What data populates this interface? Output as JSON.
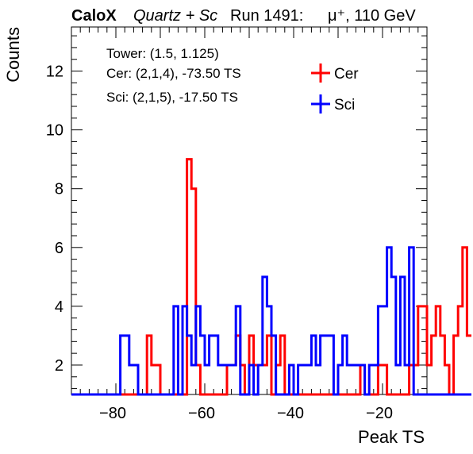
{
  "header": {
    "brand": "CaloX",
    "material": "Quartz + Sc",
    "run": "Run 1491:",
    "particle": "μ⁺, 110 GeV"
  },
  "chart_data": {
    "type": "histogram",
    "xlabel": "Peak TS",
    "ylabel": "Counts",
    "xlim": [
      -90,
      -10
    ],
    "ylim": [
      1,
      13.5
    ],
    "x_ticks": [
      -80,
      -60,
      -40,
      -20
    ],
    "y_ticks": [
      2,
      4,
      6,
      8,
      10,
      12
    ],
    "bin_width": 1,
    "bin_edges_start": -90,
    "annotation": {
      "tower": "Tower: (1.5, 1.125)",
      "cer": "Cer: (2,1,4), -73.50 TS",
      "sci": "Sci: (2,1,5), -17.50 TS"
    },
    "legend_position": "top-right",
    "series": [
      {
        "name": "Cer",
        "color": "#ff0000",
        "values": [
          1,
          1,
          1,
          1,
          1,
          1,
          1,
          1,
          1,
          1,
          1,
          1,
          1,
          1,
          1,
          1,
          1,
          3,
          2,
          2,
          1,
          1,
          1,
          1,
          1,
          1,
          9,
          8,
          2,
          1,
          1,
          1,
          1,
          1,
          1,
          2,
          2,
          3,
          2,
          1,
          3,
          2,
          2,
          2,
          3,
          1,
          2,
          3,
          1,
          1,
          1,
          1,
          1,
          1,
          1,
          1,
          1,
          1,
          1,
          1,
          1,
          1,
          1,
          1,
          1,
          2,
          1,
          1,
          1,
          2,
          2,
          1,
          1,
          1,
          1,
          1,
          2,
          2,
          4,
          4,
          2,
          3,
          4,
          3,
          2,
          1,
          3,
          4,
          6,
          3
        ]
      },
      {
        "name": "Sci",
        "color": "#0000ff",
        "values": [
          1,
          1,
          1,
          1,
          1,
          1,
          1,
          1,
          1,
          1,
          1,
          3,
          3,
          2,
          2,
          1,
          1,
          1,
          1,
          1,
          1,
          1,
          1,
          4,
          1,
          4,
          3,
          2,
          4,
          3,
          2,
          3,
          3,
          2,
          2,
          2,
          2,
          4,
          1,
          1,
          2,
          1,
          2,
          5,
          4,
          3,
          1,
          1,
          1,
          2,
          1,
          2,
          2,
          2,
          3,
          2,
          3,
          3,
          3,
          1,
          2,
          3,
          2,
          2,
          2,
          2,
          1,
          2,
          2,
          4,
          4,
          6,
          5,
          2,
          5,
          2,
          6,
          1,
          1,
          1,
          1,
          1,
          1,
          1,
          1,
          1,
          1,
          1,
          1,
          1
        ]
      }
    ]
  }
}
